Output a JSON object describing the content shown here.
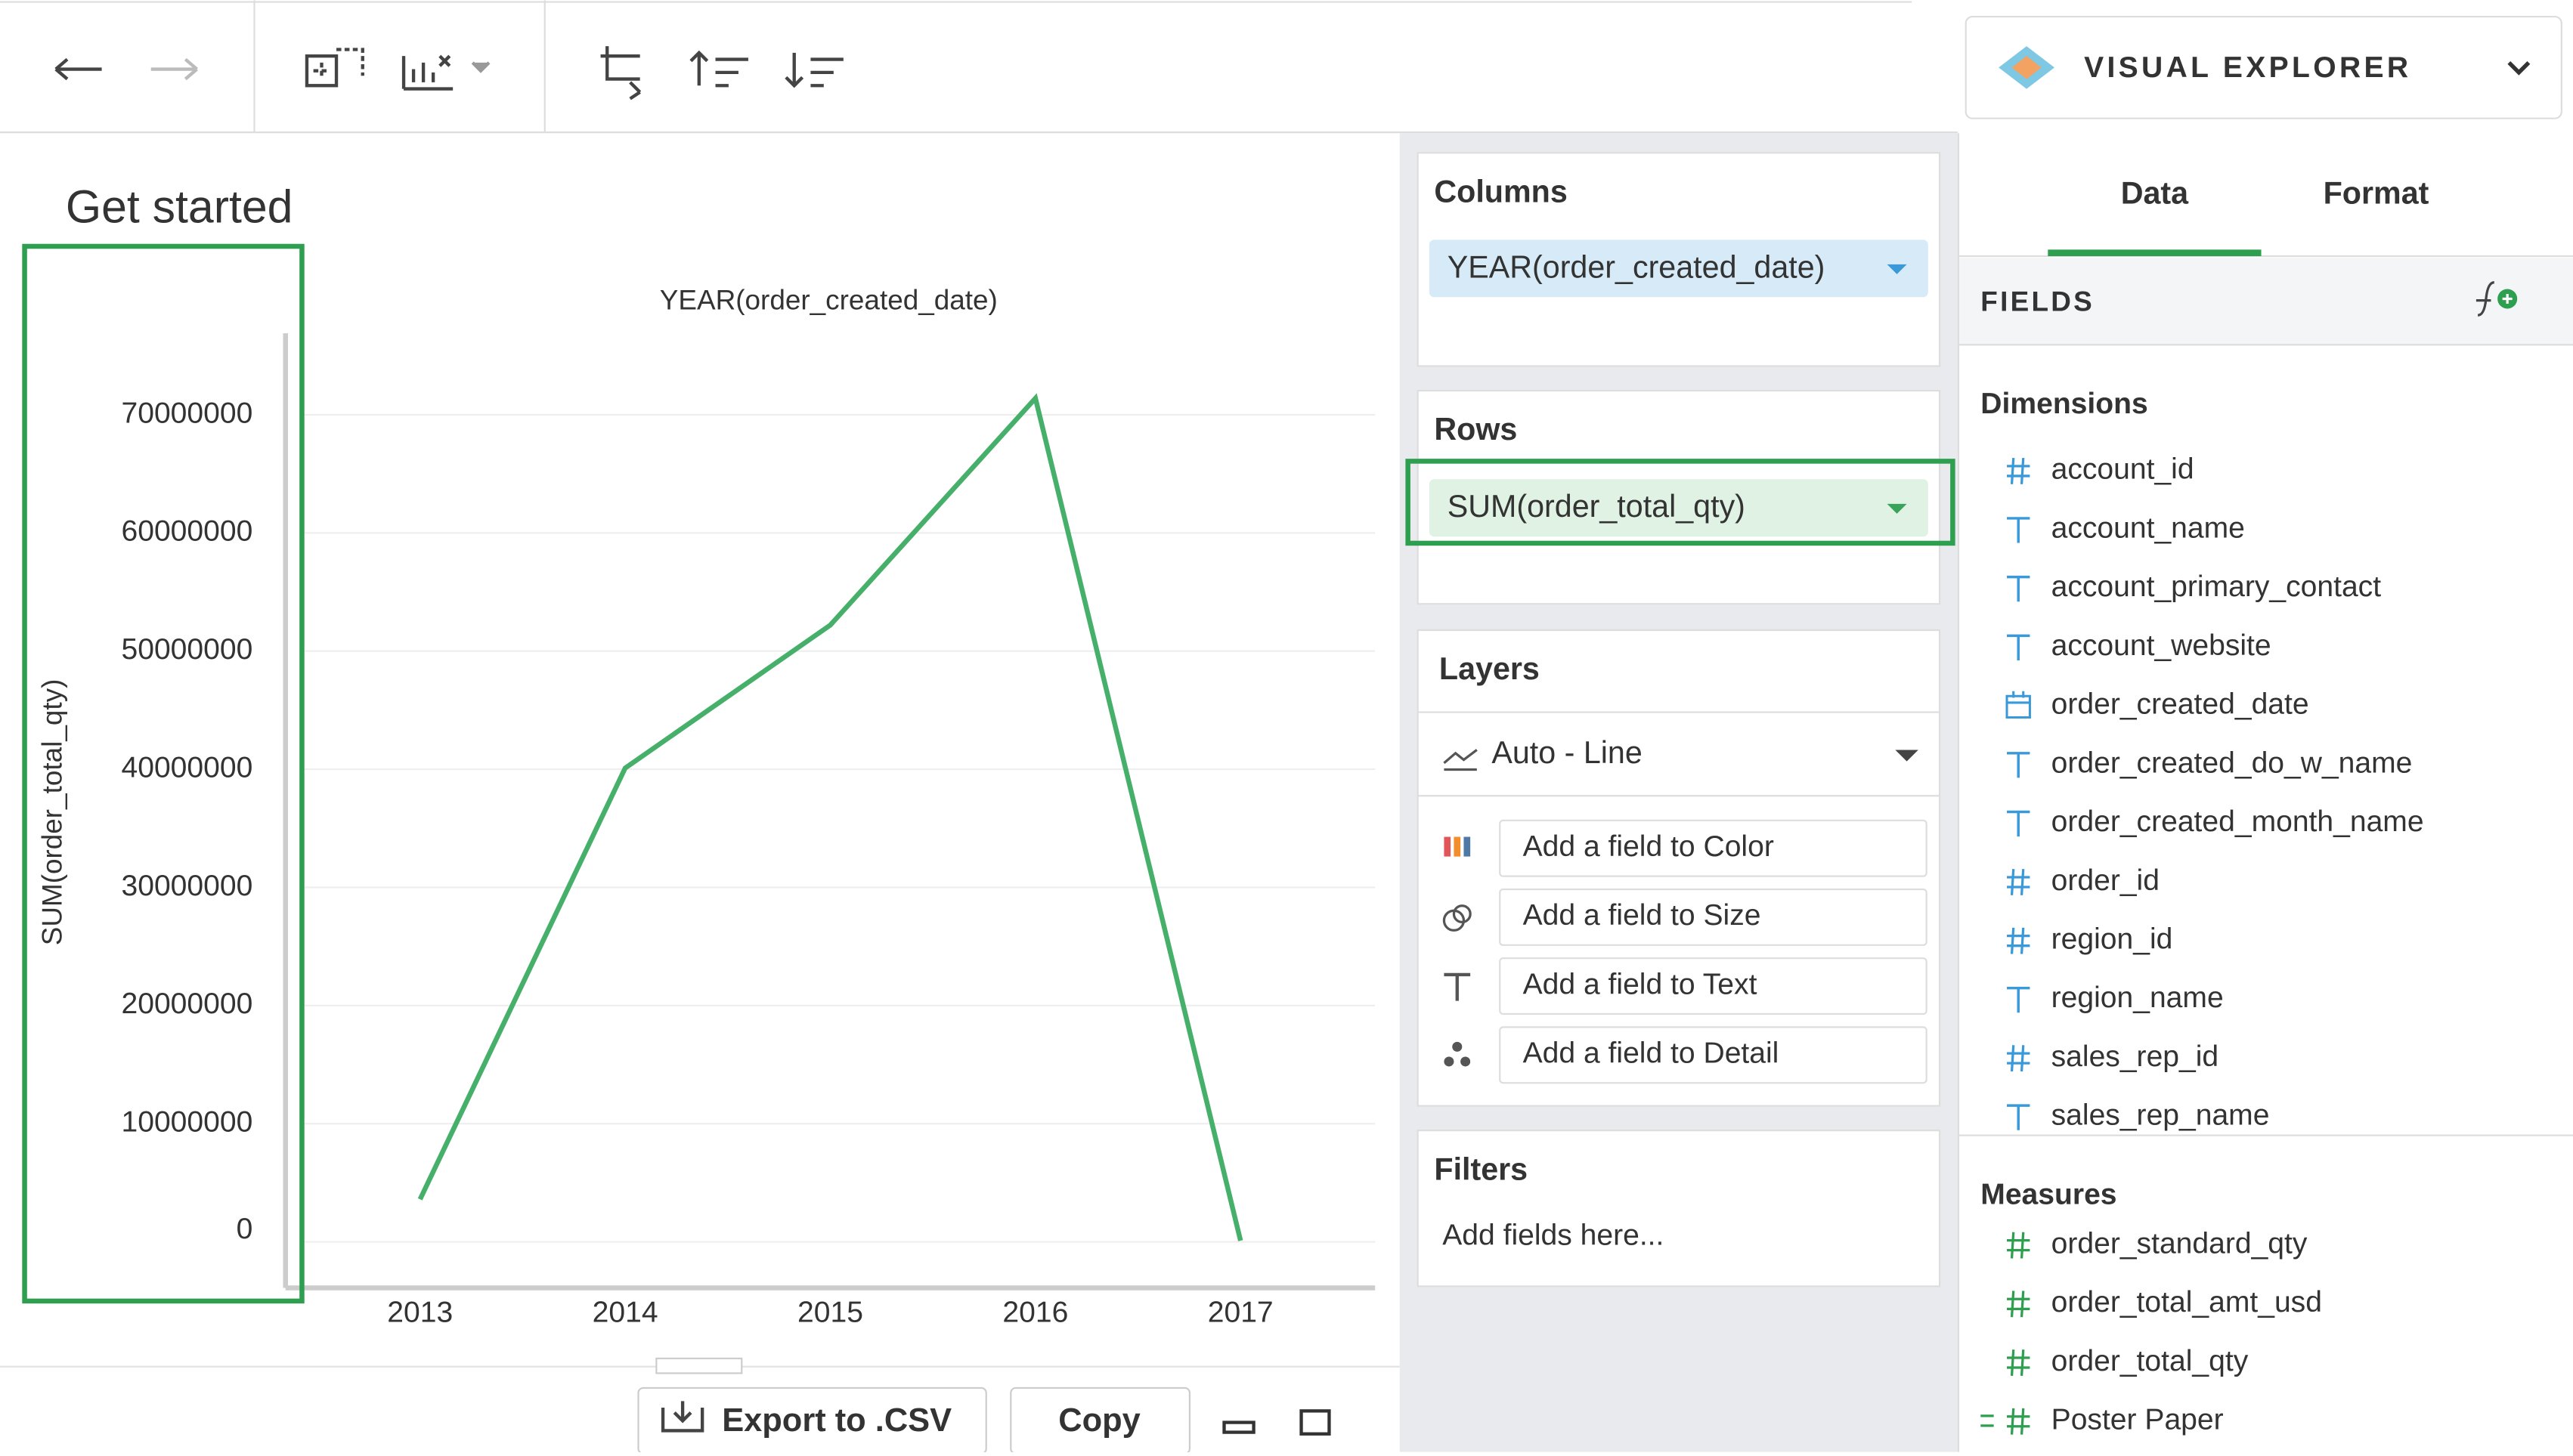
{
  "header": {
    "app_title": "VISUAL EXPLORER"
  },
  "page_title": "Get started",
  "chart_data": {
    "type": "line",
    "x_label": "YEAR(order_created_date)",
    "y_label": "SUM(order_total_qty)",
    "categories": [
      "2013",
      "2014",
      "2015",
      "2016",
      "2017"
    ],
    "values": [
      3600000,
      40100000,
      52200000,
      71400000,
      100000
    ],
    "color": "#46b06a",
    "ylim": [
      -3900000,
      76900000
    ],
    "yticks": [
      0,
      10000000,
      20000000,
      30000000,
      40000000,
      50000000,
      60000000,
      70000000
    ],
    "grid": true
  },
  "shelves": {
    "columns": {
      "label": "Columns",
      "field": "YEAR(order_created_date)"
    },
    "rows": {
      "label": "Rows",
      "field": "SUM(order_total_qty)"
    },
    "layers": {
      "label": "Layers",
      "mark": "Auto - Line",
      "encodings": [
        "Add a field to Color",
        "Add a field to Size",
        "Add a field to Text",
        "Add a field to Detail"
      ]
    },
    "filters": {
      "label": "Filters",
      "placeholder": "Add fields here..."
    }
  },
  "sidebar": {
    "tabs": [
      "Data",
      "Format"
    ],
    "fields_label": "FIELDS",
    "dimensions": {
      "label": "Dimensions",
      "items": [
        "account_id",
        "account_name",
        "account_primary_contact",
        "account_website",
        "order_created_date",
        "order_created_do_w_name",
        "order_created_month_name",
        "order_id",
        "region_id",
        "region_name",
        "sales_rep_id",
        "sales_rep_name"
      ]
    },
    "measures": {
      "label": "Measures",
      "items": [
        "order_standard_qty",
        "order_total_amt_usd",
        "order_total_qty",
        "Poster Paper"
      ]
    }
  },
  "footer": {
    "export": "Export to .CSV",
    "copy": "Copy"
  }
}
